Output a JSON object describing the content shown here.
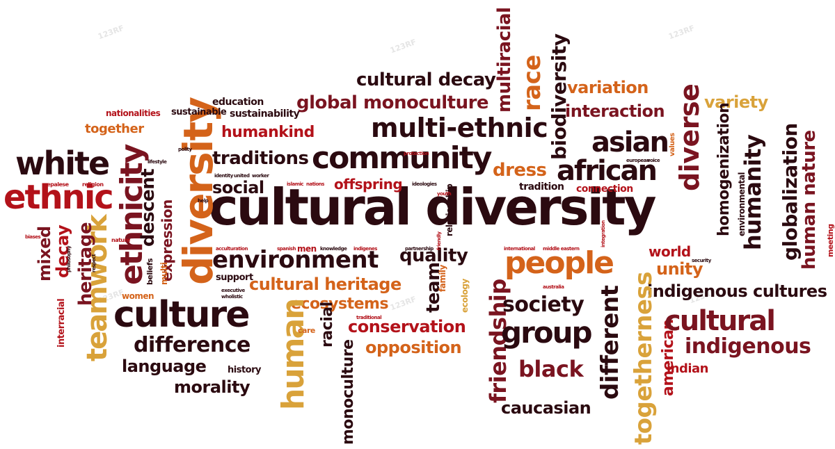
{
  "colors": {
    "dark": "#2b0a10",
    "maroon": "#7a1420",
    "red": "#b3121a",
    "orange": "#d4631a",
    "gold": "#d9a23a",
    "brown": "#8a4a20"
  },
  "watermark": "123RF",
  "words": [
    {
      "t": "cultural diversity",
      "c": "dark"
    },
    {
      "t": "community",
      "c": "dark"
    },
    {
      "t": "multi-ethnic",
      "c": "dark"
    },
    {
      "t": "cultural decay",
      "c": "dark"
    },
    {
      "t": "global monoculture",
      "c": "maroon"
    },
    {
      "t": "multiracial",
      "c": "maroon"
    },
    {
      "t": "race",
      "c": "orange"
    },
    {
      "t": "biodiversity",
      "c": "dark"
    },
    {
      "t": "variation",
      "c": "orange"
    },
    {
      "t": "interaction",
      "c": "maroon"
    },
    {
      "t": "variety",
      "c": "gold"
    },
    {
      "t": "diverse",
      "c": "maroon"
    },
    {
      "t": "asian",
      "c": "dark"
    },
    {
      "t": "african",
      "c": "dark"
    },
    {
      "t": "homogenization",
      "c": "dark"
    },
    {
      "t": "humanity",
      "c": "dark"
    },
    {
      "t": "globalization",
      "c": "dark"
    },
    {
      "t": "human nature",
      "c": "maroon"
    },
    {
      "t": "white",
      "c": "dark"
    },
    {
      "t": "ethnic",
      "c": "red"
    },
    {
      "t": "ethnicity",
      "c": "maroon"
    },
    {
      "t": "diversity",
      "c": "orange"
    },
    {
      "t": "teamwork",
      "c": "gold"
    },
    {
      "t": "traditions",
      "c": "dark"
    },
    {
      "t": "humankind",
      "c": "red"
    },
    {
      "t": "together",
      "c": "orange"
    },
    {
      "t": "education",
      "c": "dark"
    },
    {
      "t": "sustainability",
      "c": "dark"
    },
    {
      "t": "sustainable",
      "c": "dark"
    },
    {
      "t": "nationalities",
      "c": "red"
    },
    {
      "t": "social",
      "c": "dark"
    },
    {
      "t": "offspring",
      "c": "red"
    },
    {
      "t": "dress",
      "c": "orange"
    },
    {
      "t": "tradition",
      "c": "dark"
    },
    {
      "t": "connection",
      "c": "red"
    },
    {
      "t": "descent",
      "c": "dark"
    },
    {
      "t": "expression",
      "c": "maroon"
    },
    {
      "t": "environment",
      "c": "dark"
    },
    {
      "t": "quality",
      "c": "dark"
    },
    {
      "t": "people",
      "c": "orange"
    },
    {
      "t": "world",
      "c": "red"
    },
    {
      "t": "unity",
      "c": "orange"
    },
    {
      "t": "indigenous cultures",
      "c": "dark"
    },
    {
      "t": "cultural heritage",
      "c": "orange"
    },
    {
      "t": "ecosystems",
      "c": "orange"
    },
    {
      "t": "friendship",
      "c": "maroon"
    },
    {
      "t": "society",
      "c": "dark"
    },
    {
      "t": "togetherness",
      "c": "gold"
    },
    {
      "t": "american",
      "c": "red"
    },
    {
      "t": "cultural",
      "c": "maroon"
    },
    {
      "t": "culture",
      "c": "dark"
    },
    {
      "t": "conservation",
      "c": "red"
    },
    {
      "t": "group",
      "c": "dark"
    },
    {
      "t": "different",
      "c": "dark"
    },
    {
      "t": "indigenous",
      "c": "maroon"
    },
    {
      "t": "difference",
      "c": "dark"
    },
    {
      "t": "language",
      "c": "dark"
    },
    {
      "t": "morality",
      "c": "dark"
    },
    {
      "t": "human",
      "c": "gold"
    },
    {
      "t": "opposition",
      "c": "orange"
    },
    {
      "t": "black",
      "c": "maroon"
    },
    {
      "t": "caucasian",
      "c": "dark"
    },
    {
      "t": "indian",
      "c": "red"
    },
    {
      "t": "monoculture",
      "c": "dark"
    },
    {
      "t": "racial",
      "c": "dark"
    },
    {
      "t": "team",
      "c": "dark"
    },
    {
      "t": "mixed",
      "c": "maroon"
    },
    {
      "t": "decay",
      "c": "red"
    },
    {
      "t": "heritage",
      "c": "maroon"
    },
    {
      "t": "interracial",
      "c": "red"
    },
    {
      "t": "women",
      "c": "orange"
    },
    {
      "t": "history",
      "c": "dark"
    },
    {
      "t": "support",
      "c": "dark"
    },
    {
      "t": "beliefs",
      "c": "dark"
    },
    {
      "t": "multi",
      "c": "orange"
    },
    {
      "t": "men",
      "c": "red"
    },
    {
      "t": "ecology",
      "c": "gold"
    },
    {
      "t": "family",
      "c": "orange"
    },
    {
      "t": "relationship",
      "c": "dark"
    },
    {
      "t": "environmental",
      "c": "dark"
    },
    {
      "t": "meeting",
      "c": "red"
    },
    {
      "t": "values",
      "c": "orange"
    },
    {
      "t": "nature",
      "c": "red"
    },
    {
      "t": "religion",
      "c": "red"
    },
    {
      "t": "nepalese",
      "c": "red"
    },
    {
      "t": "identity",
      "c": "dark"
    },
    {
      "t": "united",
      "c": "dark"
    },
    {
      "t": "worker",
      "c": "dark"
    },
    {
      "t": "islamic",
      "c": "red"
    },
    {
      "t": "nations",
      "c": "red"
    },
    {
      "t": "ideologies",
      "c": "dark"
    },
    {
      "t": "youth",
      "c": "red"
    },
    {
      "t": "biases",
      "c": "red"
    },
    {
      "t": "care",
      "c": "orange"
    },
    {
      "t": "traditional",
      "c": "red"
    },
    {
      "t": "philosophy",
      "c": "dark"
    },
    {
      "t": "respect",
      "c": "dark"
    },
    {
      "t": "spanish",
      "c": "red"
    },
    {
      "t": "knowledge",
      "c": "dark"
    },
    {
      "t": "indigenes",
      "c": "red"
    },
    {
      "t": "partnership",
      "c": "dark"
    },
    {
      "t": "international",
      "c": "red"
    },
    {
      "t": "middle eastern",
      "c": "red"
    },
    {
      "t": "european",
      "c": "dark"
    },
    {
      "t": "security",
      "c": "dark"
    },
    {
      "t": "integration",
      "c": "red"
    },
    {
      "t": "executive",
      "c": "dark"
    },
    {
      "t": "wholistic",
      "c": "dark"
    },
    {
      "t": "australia",
      "c": "red"
    },
    {
      "t": "protection",
      "c": "red"
    },
    {
      "t": "acculturation",
      "c": "red"
    },
    {
      "t": "friendly",
      "c": "red"
    },
    {
      "t": "voice",
      "c": "dark"
    },
    {
      "t": "lifestyle",
      "c": "dark"
    },
    {
      "t": "polity",
      "c": "dark"
    },
    {
      "t": "help",
      "c": "dark"
    }
  ]
}
